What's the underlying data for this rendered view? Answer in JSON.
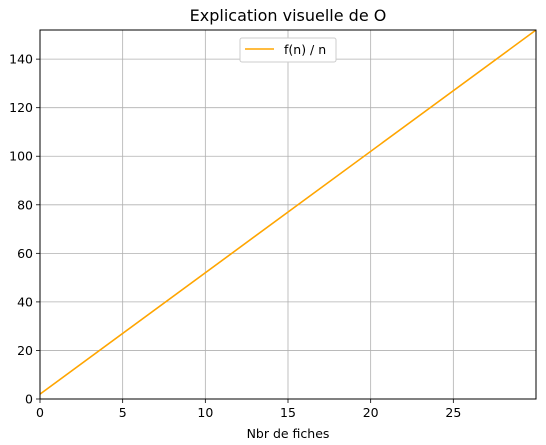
{
  "chart_data": {
    "type": "line",
    "title": "Explication visuelle de O",
    "xlabel": "Nbr de fiches",
    "ylabel": "",
    "xlim": [
      0,
      30
    ],
    "ylim": [
      0,
      152
    ],
    "xticks": [
      0,
      5,
      10,
      15,
      20,
      25
    ],
    "yticks": [
      0,
      20,
      40,
      60,
      80,
      100,
      120,
      140
    ],
    "grid": true,
    "legend_position": "top-center",
    "series": [
      {
        "name": "f(n) / n",
        "color": "#ffa500",
        "x": [
          0,
          30
        ],
        "y": [
          2,
          152
        ]
      }
    ]
  }
}
